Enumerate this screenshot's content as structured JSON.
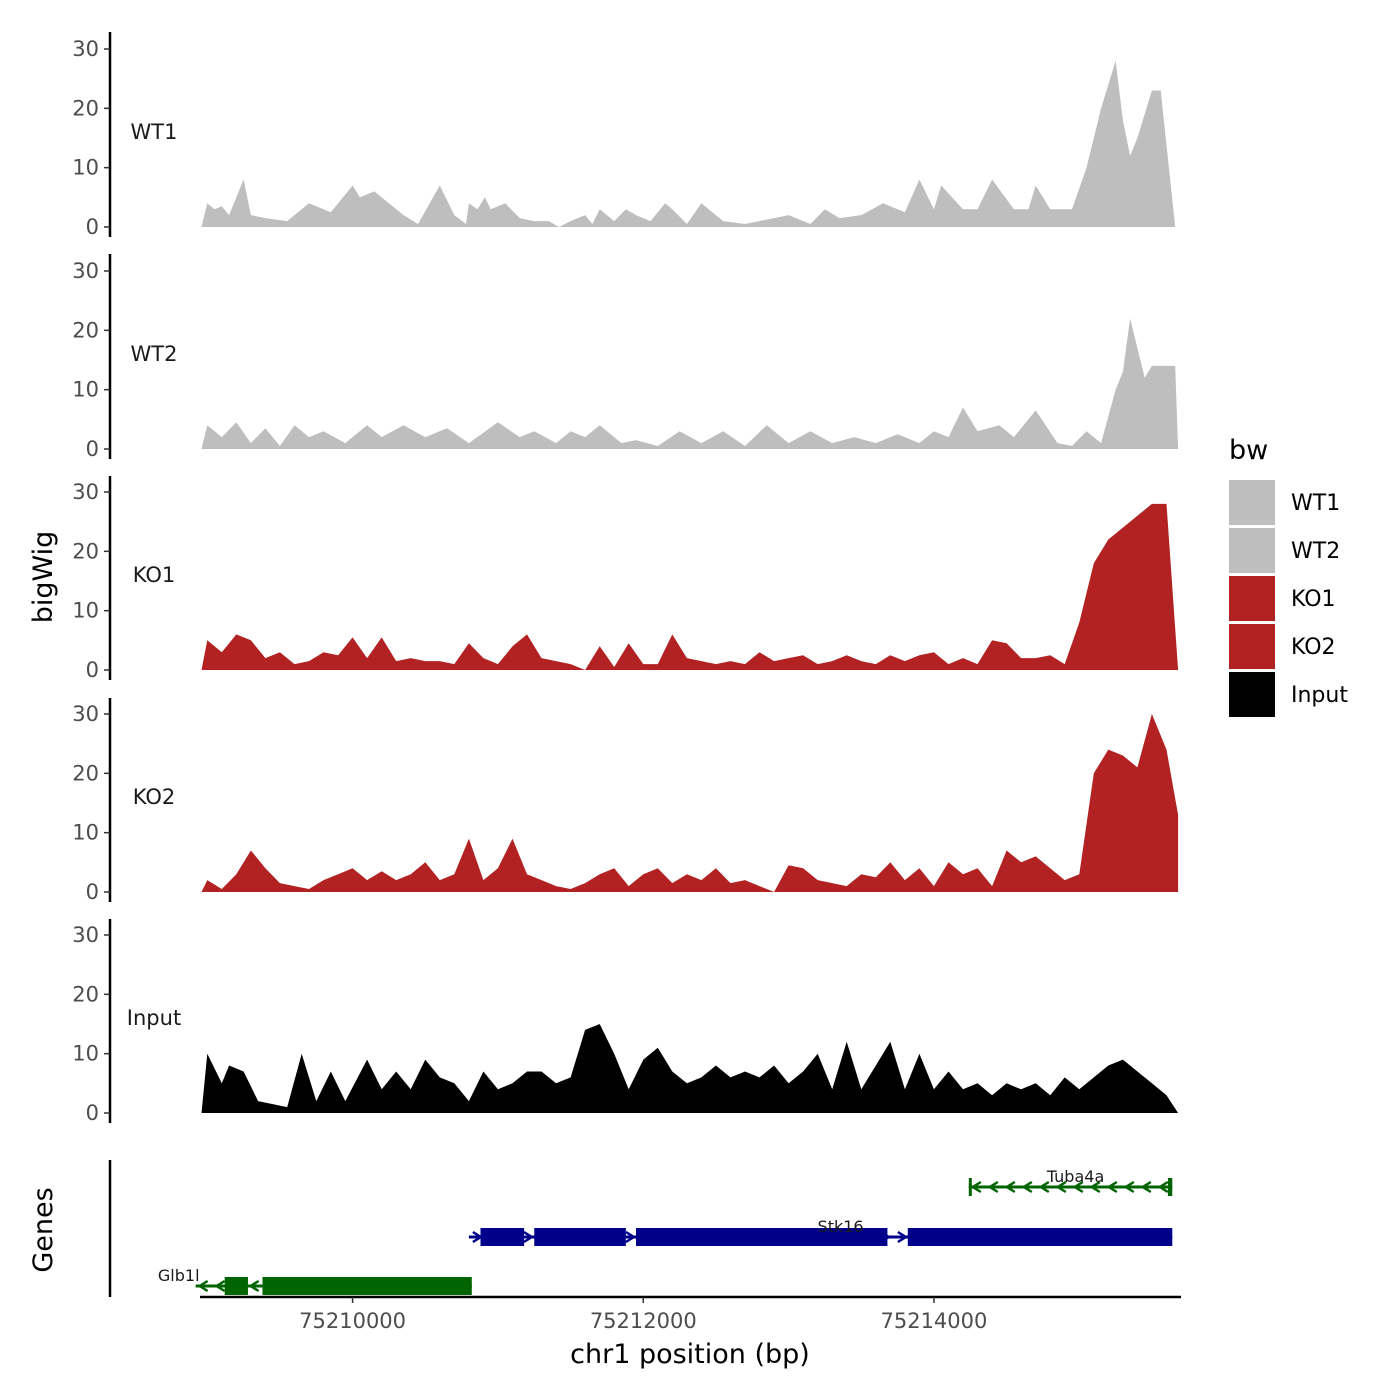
{
  "chart_data": {
    "type": "area",
    "title": "",
    "xlabel": "chr1 position (bp)",
    "ylabel": "bigWig",
    "genes_axis_label": "Genes",
    "x_ticks": [
      75210000,
      75212000,
      75214000
    ],
    "x_tick_labels": [
      "75210000",
      "75212000",
      "75214000"
    ],
    "x_range": [
      75208950,
      75215700
    ],
    "y_range": [
      0,
      32
    ],
    "y_ticks": [
      0,
      10,
      20,
      30
    ],
    "y_tick_labels": [
      "0",
      "10",
      "20",
      "30"
    ],
    "legend": {
      "title": "bw",
      "position": "right",
      "entries": [
        {
          "label": "WT1",
          "color": "#bebebe"
        },
        {
          "label": "WT2",
          "color": "#bebebe"
        },
        {
          "label": "KO1",
          "color": "#b22222"
        },
        {
          "label": "KO2",
          "color": "#b22222"
        },
        {
          "label": "Input",
          "color": "#000000"
        }
      ]
    },
    "series": [
      {
        "name": "WT1",
        "color": "#bebebe",
        "x": [
          75208960,
          75209000,
          75209050,
          75209100,
          75209150,
          75209250,
          75209300,
          75209400,
          75209550,
          75209700,
          75209850,
          75210000,
          75210050,
          75210150,
          75210250,
          75210350,
          75210450,
          75210600,
          75210700,
          75210780,
          75210800,
          75210860,
          75210910,
          75210950,
          75211050,
          75211150,
          75211250,
          75211350,
          75211420,
          75211500,
          75211600,
          75211650,
          75211700,
          75211800,
          75211880,
          75211950,
          75212050,
          75212150,
          75212200,
          75212300,
          75212400,
          75212550,
          75212700,
          75212900,
          75213000,
          75213150,
          75213250,
          75213350,
          75213500,
          75213650,
          75213800,
          75213900,
          75214000,
          75214050,
          75214200,
          75214300,
          75214400,
          75214550,
          75214650,
          75214700,
          75214800,
          75214950,
          75215050,
          75215100,
          75215150,
          75215250,
          75215300,
          75215350,
          75215400,
          75215500,
          75215560,
          75215660,
          75215680
        ],
        "values": [
          0,
          4,
          3,
          3.5,
          2,
          8,
          2,
          1.5,
          1,
          4,
          2.5,
          7,
          5,
          6,
          4,
          2,
          0.5,
          7,
          2,
          0.5,
          4,
          3,
          5,
          3,
          4,
          1.5,
          1,
          1,
          0,
          1,
          2,
          0.5,
          3,
          1,
          3,
          2,
          1,
          4,
          3,
          0.5,
          4,
          1,
          0.5,
          1.5,
          2,
          0.5,
          3,
          1.5,
          2,
          4,
          2.5,
          8,
          3,
          7,
          3,
          3,
          8,
          3,
          3,
          7,
          3,
          3,
          10,
          15,
          20,
          28,
          18,
          12,
          15,
          23,
          23,
          0,
          0
        ]
      },
      {
        "name": "WT2",
        "color": "#bebebe",
        "x": [
          75208960,
          75209000,
          75209100,
          75209200,
          75209300,
          75209400,
          75209500,
          75209600,
          75209700,
          75209800,
          75209950,
          75210100,
          75210200,
          75210350,
          75210500,
          75210650,
          75210800,
          75211000,
          75211150,
          75211250,
          75211400,
          75211500,
          75211600,
          75211700,
          75211850,
          75211950,
          75212100,
          75212250,
          75212400,
          75212550,
          75212700,
          75212850,
          75213000,
          75213150,
          75213300,
          75213450,
          75213600,
          75213750,
          75213900,
          75214000,
          75214100,
          75214200,
          75214300,
          75214450,
          75214550,
          75214700,
          75214850,
          75214950,
          75215050,
          75215150,
          75215250,
          75215300,
          75215350,
          75215450,
          75215500,
          75215660,
          75215680
        ],
        "values": [
          0,
          4,
          2,
          4.5,
          1,
          3.5,
          0.5,
          4,
          2,
          3,
          1,
          4,
          2,
          4,
          2,
          3.5,
          1,
          4.5,
          2,
          3,
          1,
          3,
          2,
          4,
          1,
          1.5,
          0.5,
          3,
          1,
          3,
          0.5,
          4,
          1,
          3,
          1,
          2,
          1,
          2.5,
          1,
          3,
          2,
          7,
          3,
          4,
          2,
          6.5,
          1,
          0.5,
          3,
          1,
          10,
          13,
          22,
          12,
          14,
          14,
          0
        ]
      },
      {
        "name": "KO1",
        "color": "#b22222",
        "x": [
          75208960,
          75209000,
          75209100,
          75209200,
          75209300,
          75209400,
          75209500,
          75209600,
          75209700,
          75209800,
          75209900,
          75210000,
          75210100,
          75210200,
          75210300,
          75210400,
          75210500,
          75210600,
          75210700,
          75210800,
          75210900,
          75211000,
          75211100,
          75211200,
          75211300,
          75211400,
          75211500,
          75211600,
          75211700,
          75211800,
          75211900,
          75212000,
          75212100,
          75212200,
          75212300,
          75212400,
          75212500,
          75212600,
          75212700,
          75212800,
          75212900,
          75213000,
          75213100,
          75213200,
          75213300,
          75213400,
          75213500,
          75213600,
          75213700,
          75213800,
          75213900,
          75214000,
          75214100,
          75214200,
          75214300,
          75214400,
          75214500,
          75214600,
          75214700,
          75214800,
          75214900,
          75215000,
          75215100,
          75215200,
          75215300,
          75215400,
          75215500,
          75215600,
          75215680
        ],
        "values": [
          0,
          5,
          3,
          6,
          5,
          2,
          3,
          1,
          1.5,
          3,
          2.5,
          5.5,
          2,
          5.5,
          1.5,
          2,
          1.5,
          1.5,
          1,
          4.5,
          2,
          1,
          4,
          6,
          2,
          1.5,
          1,
          0,
          4,
          0.5,
          4.5,
          1,
          1,
          6,
          2,
          1.5,
          1,
          1.5,
          1,
          3,
          1.5,
          2,
          2.5,
          1,
          1.5,
          2.5,
          1.5,
          1,
          2.5,
          1.5,
          2.5,
          3,
          1,
          2,
          1,
          5,
          4.5,
          2,
          2,
          2.5,
          1,
          8,
          18,
          22,
          24,
          26,
          28,
          28,
          0
        ]
      },
      {
        "name": "KO2",
        "color": "#b22222",
        "x": [
          75208960,
          75209000,
          75209100,
          75209200,
          75209300,
          75209400,
          75209500,
          75209600,
          75209700,
          75209800,
          75209900,
          75210000,
          75210100,
          75210200,
          75210300,
          75210400,
          75210500,
          75210600,
          75210700,
          75210800,
          75210900,
          75211000,
          75211100,
          75211200,
          75211300,
          75211400,
          75211500,
          75211600,
          75211700,
          75211800,
          75211900,
          75212000,
          75212100,
          75212200,
          75212300,
          75212400,
          75212500,
          75212600,
          75212700,
          75212800,
          75212900,
          75213000,
          75213100,
          75213200,
          75213300,
          75213400,
          75213500,
          75213600,
          75213700,
          75213800,
          75213900,
          75214000,
          75214100,
          75214200,
          75214300,
          75214400,
          75214500,
          75214600,
          75214700,
          75214800,
          75214900,
          75215000,
          75215100,
          75215200,
          75215300,
          75215400,
          75215500,
          75215600,
          75215680
        ],
        "values": [
          0,
          2,
          0.5,
          3,
          7,
          4,
          1.5,
          1,
          0.5,
          2,
          3,
          4,
          2,
          3.5,
          2,
          3,
          5,
          2,
          3,
          9,
          2,
          4,
          9,
          3,
          2,
          1,
          0.5,
          1.5,
          3,
          4,
          1,
          3,
          4,
          1.5,
          3,
          2,
          4,
          1.5,
          2,
          1,
          0,
          4.5,
          4,
          2,
          1.5,
          1,
          3,
          2.5,
          5,
          2,
          4,
          1,
          5,
          3,
          4,
          1,
          7,
          5,
          6,
          4,
          2,
          3,
          20,
          24,
          23,
          21,
          30,
          24,
          13
        ]
      },
      {
        "name": "Input",
        "color": "#000000",
        "x": [
          75208960,
          75209000,
          75209100,
          75209150,
          75209250,
          75209350,
          75209450,
          75209550,
          75209650,
          75209750,
          75209850,
          75209950,
          75210100,
          75210200,
          75210300,
          75210400,
          75210500,
          75210600,
          75210700,
          75210800,
          75210900,
          75211000,
          75211100,
          75211200,
          75211300,
          75211400,
          75211500,
          75211600,
          75211700,
          75211800,
          75211900,
          75212000,
          75212100,
          75212200,
          75212300,
          75212400,
          75212500,
          75212600,
          75212700,
          75212800,
          75212900,
          75213000,
          75213100,
          75213200,
          75213300,
          75213400,
          75213500,
          75213600,
          75213700,
          75213800,
          75213900,
          75214000,
          75214100,
          75214200,
          75214300,
          75214400,
          75214500,
          75214600,
          75214700,
          75214800,
          75214900,
          75215000,
          75215100,
          75215200,
          75215300,
          75215400,
          75215500,
          75215600,
          75215680
        ],
        "values": [
          0,
          10,
          5,
          8,
          7,
          2,
          1.5,
          1,
          10,
          2,
          7,
          2,
          9,
          4,
          7,
          4,
          9,
          6,
          5,
          2,
          7,
          4,
          5,
          7,
          7,
          5,
          6,
          14,
          15,
          10,
          4,
          9,
          11,
          7,
          5,
          6,
          8,
          6,
          7,
          6,
          8,
          5,
          7,
          10,
          4,
          12,
          4,
          8,
          12,
          4,
          10,
          4,
          7,
          4,
          5,
          3,
          5,
          4,
          5,
          3,
          6,
          4,
          6,
          8,
          9,
          7,
          5,
          3,
          0
        ]
      }
    ],
    "gene_tracks": [
      {
        "name": "Tuba4a",
        "strand": "-",
        "color": "#006400",
        "start": 75214240,
        "end": 75215640,
        "exons": [
          [
            75214240,
            75214260
          ],
          [
            75215610,
            75215640
          ]
        ]
      },
      {
        "name": "Stk16",
        "strand": "+",
        "color": "#00008b",
        "start": 75210800,
        "end": 75215640,
        "exons": [
          [
            75210880,
            75211180
          ],
          [
            75211250,
            75211880
          ],
          [
            75211950,
            75213680
          ],
          [
            75213820,
            75215640
          ]
        ]
      },
      {
        "name": "Glb1l",
        "strand": "-",
        "color": "#006400",
        "start": 75208920,
        "end": 75210820,
        "exons": [
          [
            75209120,
            75209280
          ],
          [
            75209380,
            75210820
          ]
        ]
      }
    ]
  }
}
